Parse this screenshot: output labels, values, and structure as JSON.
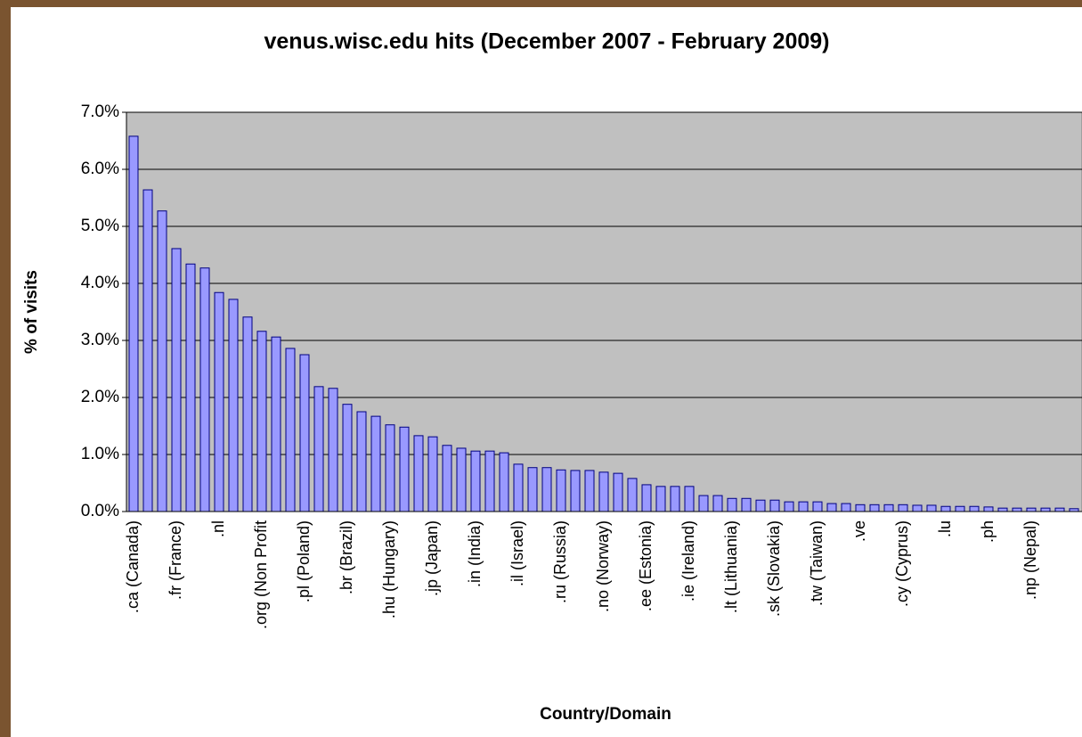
{
  "chart_data": {
    "type": "bar",
    "title": "venus.wisc.edu hits (December 2007 - February 2009)",
    "x_label": "Country/Domain",
    "y_label": "% of visits",
    "categories": [
      ".ca (Canada)",
      null,
      null,
      ".fr (France)",
      null,
      null,
      ".nl",
      null,
      null,
      ".org (Non Profit",
      null,
      null,
      ".pl (Poland)",
      null,
      null,
      ".br (Brazil)",
      null,
      null,
      ".hu (Hungary)",
      null,
      null,
      ".jp (Japan)",
      null,
      null,
      ".in (India)",
      null,
      null,
      ".il (Israel)",
      null,
      null,
      ".ru (Russia)",
      null,
      null,
      ".no (Norway)",
      null,
      null,
      ".ee (Estonia)",
      null,
      null,
      ".ie (Ireland)",
      null,
      null,
      ".lt (Lithuania)",
      null,
      null,
      ".sk (Slovakia)",
      null,
      null,
      ".tw (Taiwan)",
      null,
      null,
      ".ve",
      null,
      null,
      ".cy (Cyprus)",
      null,
      null,
      ".lu",
      null,
      null,
      ".ph",
      null,
      null,
      ".np (Nepal)",
      null,
      null,
      null
    ],
    "values": [
      6.58,
      5.64,
      5.27,
      4.61,
      4.34,
      4.27,
      3.84,
      3.72,
      3.41,
      3.16,
      3.06,
      2.86,
      2.75,
      2.19,
      2.16,
      1.88,
      1.75,
      1.67,
      1.52,
      1.48,
      1.33,
      1.31,
      1.16,
      1.11,
      1.06,
      1.06,
      1.03,
      0.83,
      0.77,
      0.77,
      0.73,
      0.72,
      0.72,
      0.69,
      0.67,
      0.58,
      0.47,
      0.44,
      0.44,
      0.44,
      0.28,
      0.28,
      0.23,
      0.23,
      0.2,
      0.2,
      0.17,
      0.17,
      0.17,
      0.14,
      0.14,
      0.12,
      0.12,
      0.12,
      0.12,
      0.11,
      0.11,
      0.09,
      0.09,
      0.09,
      0.08,
      0.06,
      0.06,
      0.06,
      0.06,
      0.06,
      0.05
    ],
    "color": "#9999ff",
    "ylim": [
      0,
      7
    ],
    "yticks": [
      {
        "value": 0,
        "label": "0.0%"
      },
      {
        "value": 1,
        "label": "1.0%"
      },
      {
        "value": 2,
        "label": "2.0%"
      },
      {
        "value": 3,
        "label": "3.0%"
      },
      {
        "value": 4,
        "label": "4.0%"
      },
      {
        "value": 5,
        "label": "5.0%"
      },
      {
        "value": 6,
        "label": "6.0%"
      },
      {
        "value": 7,
        "label": "7.0%"
      }
    ],
    "grid": true
  }
}
